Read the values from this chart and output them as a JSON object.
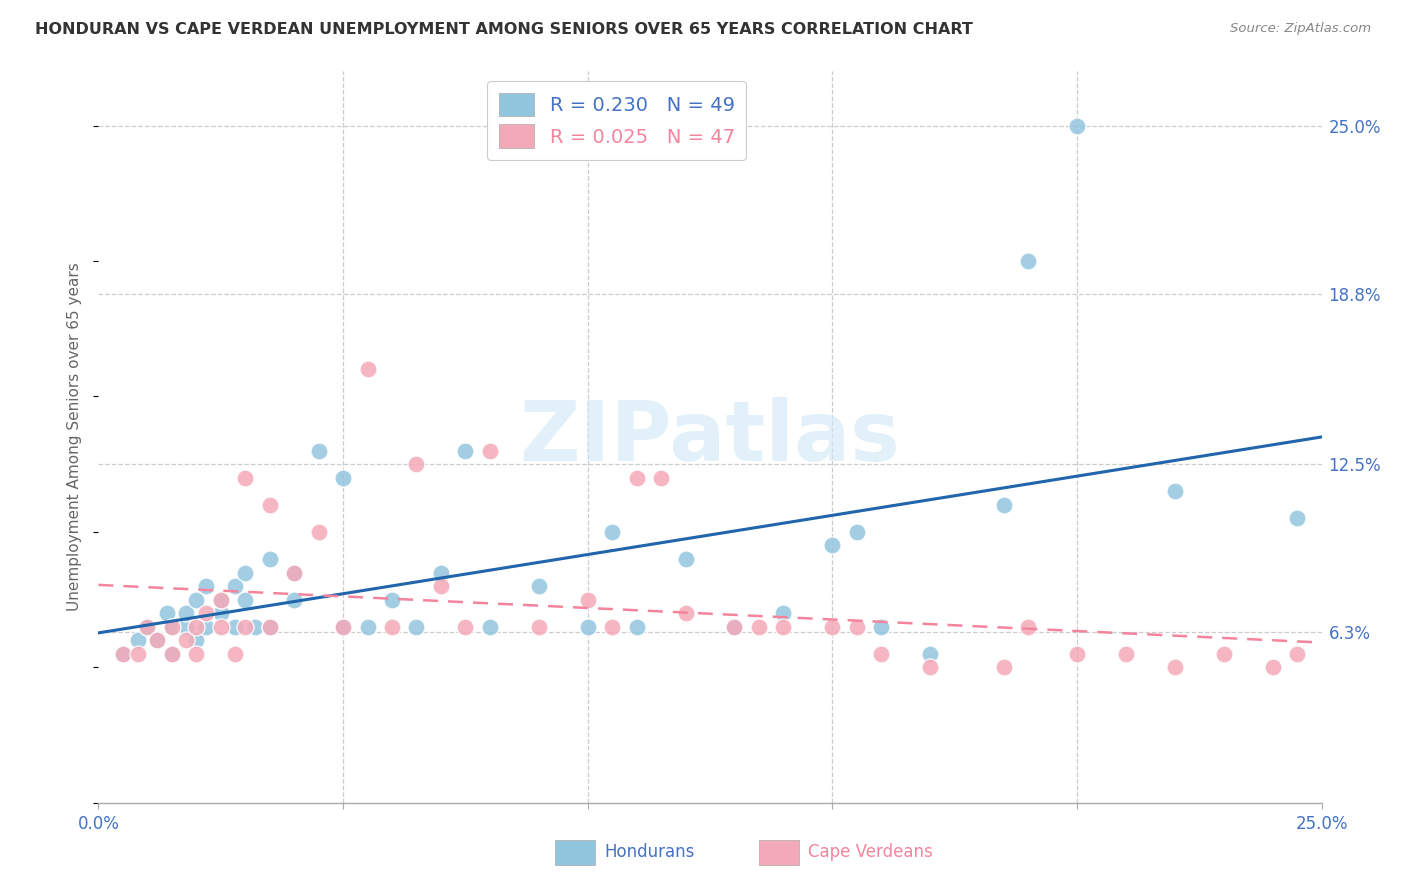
{
  "title": "HONDURAN VS CAPE VERDEAN UNEMPLOYMENT AMONG SENIORS OVER 65 YEARS CORRELATION CHART",
  "source": "Source: ZipAtlas.com",
  "ylabel": "Unemployment Among Seniors over 65 years",
  "xlim": [
    0.0,
    0.25
  ],
  "ylim": [
    0.0,
    0.27
  ],
  "yticks": [
    0.063,
    0.125,
    0.188,
    0.25
  ],
  "ytick_labels": [
    "6.3%",
    "12.5%",
    "18.8%",
    "25.0%"
  ],
  "xticks": [
    0.0,
    0.05,
    0.1,
    0.15,
    0.2,
    0.25
  ],
  "xtick_labels": [
    "0.0%",
    "",
    "",
    "",
    "",
    "25.0%"
  ],
  "honduran_color": "#92c5de",
  "cape_verdean_color": "#f4a9b8",
  "honduran_line_color": "#2166ac",
  "cape_verdean_line_color": "#f4849c",
  "honduran_R": 0.23,
  "honduran_N": 49,
  "cape_verdean_R": 0.025,
  "cape_verdean_N": 47,
  "background_color": "#ffffff",
  "grid_color": "#cccccc",
  "watermark_color": "#d0e8f5",
  "tick_label_color": "#4472c4",
  "title_color": "#333333",
  "source_color": "#888888",
  "ylabel_color": "#666666",
  "honduran_x": [
    0.005,
    0.008,
    0.01,
    0.012,
    0.014,
    0.015,
    0.015,
    0.018,
    0.018,
    0.02,
    0.02,
    0.022,
    0.022,
    0.025,
    0.025,
    0.028,
    0.028,
    0.03,
    0.03,
    0.032,
    0.035,
    0.035,
    0.04,
    0.04,
    0.045,
    0.05,
    0.05,
    0.055,
    0.06,
    0.065,
    0.07,
    0.075,
    0.08,
    0.09,
    0.1,
    0.105,
    0.11,
    0.12,
    0.13,
    0.14,
    0.15,
    0.155,
    0.16,
    0.17,
    0.185,
    0.19,
    0.2,
    0.22,
    0.245
  ],
  "honduran_y": [
    0.055,
    0.06,
    0.065,
    0.06,
    0.07,
    0.065,
    0.055,
    0.065,
    0.07,
    0.06,
    0.075,
    0.08,
    0.065,
    0.07,
    0.075,
    0.065,
    0.08,
    0.075,
    0.085,
    0.065,
    0.065,
    0.09,
    0.075,
    0.085,
    0.13,
    0.065,
    0.12,
    0.065,
    0.075,
    0.065,
    0.085,
    0.13,
    0.065,
    0.08,
    0.065,
    0.1,
    0.065,
    0.09,
    0.065,
    0.07,
    0.095,
    0.1,
    0.065,
    0.055,
    0.11,
    0.2,
    0.25,
    0.115,
    0.105
  ],
  "cape_verdean_x": [
    0.005,
    0.008,
    0.01,
    0.012,
    0.015,
    0.015,
    0.018,
    0.02,
    0.02,
    0.022,
    0.025,
    0.025,
    0.028,
    0.03,
    0.03,
    0.035,
    0.035,
    0.04,
    0.045,
    0.05,
    0.055,
    0.06,
    0.065,
    0.07,
    0.075,
    0.08,
    0.09,
    0.1,
    0.105,
    0.11,
    0.115,
    0.12,
    0.13,
    0.135,
    0.14,
    0.15,
    0.155,
    0.16,
    0.17,
    0.185,
    0.19,
    0.2,
    0.21,
    0.22,
    0.23,
    0.24,
    0.245
  ],
  "cape_verdean_y": [
    0.055,
    0.055,
    0.065,
    0.06,
    0.065,
    0.055,
    0.06,
    0.065,
    0.055,
    0.07,
    0.075,
    0.065,
    0.055,
    0.065,
    0.12,
    0.065,
    0.11,
    0.085,
    0.1,
    0.065,
    0.16,
    0.065,
    0.125,
    0.08,
    0.065,
    0.13,
    0.065,
    0.075,
    0.065,
    0.12,
    0.12,
    0.07,
    0.065,
    0.065,
    0.065,
    0.065,
    0.065,
    0.055,
    0.05,
    0.05,
    0.065,
    0.055,
    0.055,
    0.05,
    0.055,
    0.05,
    0.055
  ]
}
